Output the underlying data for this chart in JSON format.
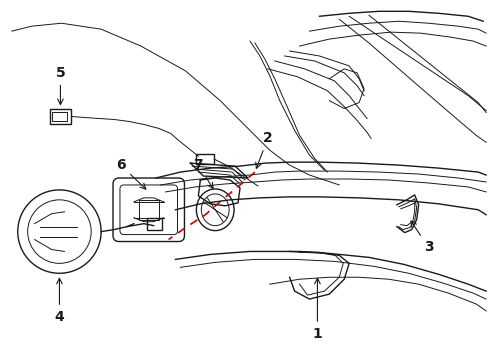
{
  "background_color": "#ffffff",
  "line_color": "#1a1a1a",
  "red_dashed_color": "#cc0000",
  "label_fontsize": 10,
  "fig_width": 4.89,
  "fig_height": 3.6,
  "dpi": 100
}
